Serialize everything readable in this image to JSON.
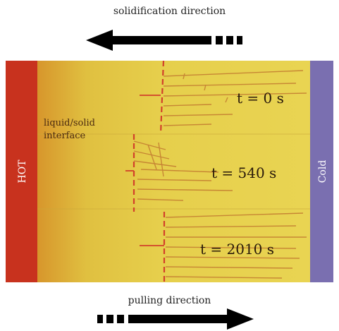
{
  "captions": {
    "top": "solidification direction",
    "bottom": "pulling direction"
  },
  "regions": {
    "hot": "HOT",
    "cold": "Cold"
  },
  "interface_label": [
    "liquid/solid",
    "interface"
  ],
  "time_labels": [
    "t = 0 s",
    "t = 540 s",
    "t = 2010 s"
  ],
  "colors": {
    "hot": "#c8321e",
    "cold": "#7a6fb0",
    "sample_light": "#e8d24a",
    "sample_dark": "#d9a832",
    "interface": "#d2402a",
    "arrow": "#000000"
  },
  "arrows": {
    "top_direction": "left",
    "bottom_direction": "right"
  }
}
